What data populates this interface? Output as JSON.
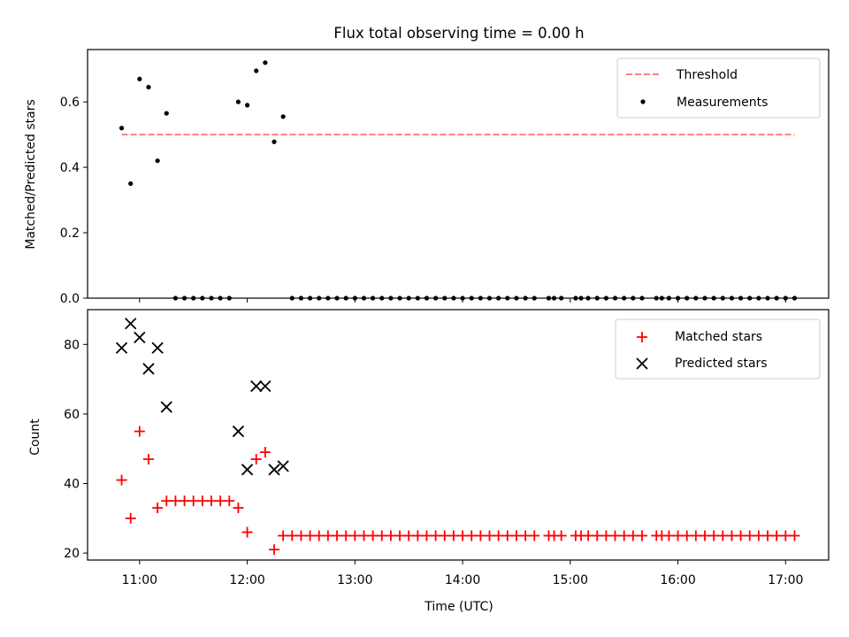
{
  "figure": {
    "title": "Flux total observing time = 0.00 h"
  },
  "chart_data": [
    {
      "type": "scatter",
      "panel": "top",
      "title": "Flux total observing time = 0.00 h",
      "xlabel": "",
      "ylabel": "Matched/Predicted stars",
      "xlim": [
        "10:31",
        "17:24"
      ],
      "ylim": [
        0,
        0.76
      ],
      "yticks": [
        "0.0",
        "0.2",
        "0.4",
        "0.6"
      ],
      "ytick_values": [
        0,
        0.2,
        0.4,
        0.6
      ],
      "xticks_labeled": false,
      "legend_position": "top-right",
      "threshold": {
        "name": "Threshold",
        "value": 0.5,
        "x_range": [
          "10:50",
          "17:05"
        ],
        "color": "#ff7f7f",
        "style": "dashed"
      },
      "series": [
        {
          "name": "Measurements",
          "color": "#000000",
          "marker": "dot",
          "points": [
            [
              "10:50",
              0.52
            ],
            [
              "10:55",
              0.35
            ],
            [
              "11:00",
              0.67
            ],
            [
              "11:05",
              0.645
            ],
            [
              "11:10",
              0.42
            ],
            [
              "11:15",
              0.565
            ],
            [
              "11:20",
              0.0
            ],
            [
              "11:25",
              0.0
            ],
            [
              "11:30",
              0.0
            ],
            [
              "11:35",
              0.0
            ],
            [
              "11:40",
              0.0
            ],
            [
              "11:45",
              0.0
            ],
            [
              "11:50",
              0.0
            ],
            [
              "11:55",
              0.6
            ],
            [
              "12:00",
              0.59
            ],
            [
              "12:05",
              0.695
            ],
            [
              "12:10",
              0.72
            ],
            [
              "12:15",
              0.478
            ],
            [
              "12:20",
              0.555
            ],
            [
              "12:25",
              0.0
            ],
            [
              "12:30",
              0.0
            ],
            [
              "12:35",
              0.0
            ],
            [
              "12:40",
              0.0
            ],
            [
              "12:45",
              0.0
            ],
            [
              "12:50",
              0.0
            ],
            [
              "12:55",
              0.0
            ],
            [
              "13:00",
              0.0
            ],
            [
              "13:05",
              0.0
            ],
            [
              "13:10",
              0.0
            ],
            [
              "13:15",
              0.0
            ],
            [
              "13:20",
              0.0
            ],
            [
              "13:25",
              0.0
            ],
            [
              "13:30",
              0.0
            ],
            [
              "13:35",
              0.0
            ],
            [
              "13:40",
              0.0
            ],
            [
              "13:45",
              0.0
            ],
            [
              "13:50",
              0.0
            ],
            [
              "13:55",
              0.0
            ],
            [
              "14:00",
              0.0
            ],
            [
              "14:05",
              0.0
            ],
            [
              "14:10",
              0.0
            ],
            [
              "14:15",
              0.0
            ],
            [
              "14:20",
              0.0
            ],
            [
              "14:25",
              0.0
            ],
            [
              "14:30",
              0.0
            ],
            [
              "14:35",
              0.0
            ],
            [
              "14:40",
              0.0
            ],
            [
              "14:48",
              0.0
            ],
            [
              "14:51",
              0.0
            ],
            [
              "14:55",
              0.0
            ],
            [
              "15:03",
              0.0
            ],
            [
              "15:06",
              0.0
            ],
            [
              "15:10",
              0.0
            ],
            [
              "15:15",
              0.0
            ],
            [
              "15:20",
              0.0
            ],
            [
              "15:25",
              0.0
            ],
            [
              "15:30",
              0.0
            ],
            [
              "15:35",
              0.0
            ],
            [
              "15:40",
              0.0
            ],
            [
              "15:48",
              0.0
            ],
            [
              "15:51",
              0.0
            ],
            [
              "15:55",
              0.0
            ],
            [
              "16:00",
              0.0
            ],
            [
              "16:05",
              0.0
            ],
            [
              "16:10",
              0.0
            ],
            [
              "16:15",
              0.0
            ],
            [
              "16:20",
              0.0
            ],
            [
              "16:25",
              0.0
            ],
            [
              "16:30",
              0.0
            ],
            [
              "16:35",
              0.0
            ],
            [
              "16:40",
              0.0
            ],
            [
              "16:45",
              0.0
            ],
            [
              "16:50",
              0.0
            ],
            [
              "16:55",
              0.0
            ],
            [
              "17:00",
              0.0
            ],
            [
              "17:05",
              0.0
            ]
          ]
        }
      ]
    },
    {
      "type": "scatter",
      "panel": "bottom",
      "title": "",
      "xlabel": "Time (UTC)",
      "ylabel": "Count",
      "xlim": [
        "10:31",
        "17:24"
      ],
      "ylim": [
        18,
        90
      ],
      "xticks": [
        "11:00",
        "12:00",
        "13:00",
        "14:00",
        "15:00",
        "16:00",
        "17:00"
      ],
      "yticks": [
        "20",
        "40",
        "60",
        "80"
      ],
      "ytick_values": [
        20,
        40,
        60,
        80
      ],
      "legend_position": "top-right",
      "series": [
        {
          "name": "Matched stars",
          "color": "#ff0000",
          "marker": "plus",
          "points": [
            [
              "10:50",
              41
            ],
            [
              "10:55",
              30
            ],
            [
              "11:00",
              55
            ],
            [
              "11:05",
              47
            ],
            [
              "11:10",
              33
            ],
            [
              "11:15",
              35
            ],
            [
              "11:20",
              35
            ],
            [
              "11:25",
              35
            ],
            [
              "11:30",
              35
            ],
            [
              "11:35",
              35
            ],
            [
              "11:40",
              35
            ],
            [
              "11:45",
              35
            ],
            [
              "11:50",
              35
            ],
            [
              "11:55",
              33
            ],
            [
              "12:00",
              26
            ],
            [
              "12:05",
              47
            ],
            [
              "12:10",
              49
            ],
            [
              "12:15",
              21
            ],
            [
              "12:20",
              25
            ],
            [
              "12:25",
              25
            ],
            [
              "12:30",
              25
            ],
            [
              "12:35",
              25
            ],
            [
              "12:40",
              25
            ],
            [
              "12:45",
              25
            ],
            [
              "12:50",
              25
            ],
            [
              "12:55",
              25
            ],
            [
              "13:00",
              25
            ],
            [
              "13:05",
              25
            ],
            [
              "13:10",
              25
            ],
            [
              "13:15",
              25
            ],
            [
              "13:20",
              25
            ],
            [
              "13:25",
              25
            ],
            [
              "13:30",
              25
            ],
            [
              "13:35",
              25
            ],
            [
              "13:40",
              25
            ],
            [
              "13:45",
              25
            ],
            [
              "13:50",
              25
            ],
            [
              "13:55",
              25
            ],
            [
              "14:00",
              25
            ],
            [
              "14:05",
              25
            ],
            [
              "14:10",
              25
            ],
            [
              "14:15",
              25
            ],
            [
              "14:20",
              25
            ],
            [
              "14:25",
              25
            ],
            [
              "14:30",
              25
            ],
            [
              "14:35",
              25
            ],
            [
              "14:40",
              25
            ],
            [
              "14:48",
              25
            ],
            [
              "14:51",
              25
            ],
            [
              "14:55",
              25
            ],
            [
              "15:03",
              25
            ],
            [
              "15:06",
              25
            ],
            [
              "15:10",
              25
            ],
            [
              "15:15",
              25
            ],
            [
              "15:20",
              25
            ],
            [
              "15:25",
              25
            ],
            [
              "15:30",
              25
            ],
            [
              "15:35",
              25
            ],
            [
              "15:40",
              25
            ],
            [
              "15:48",
              25
            ],
            [
              "15:51",
              25
            ],
            [
              "15:55",
              25
            ],
            [
              "16:00",
              25
            ],
            [
              "16:05",
              25
            ],
            [
              "16:10",
              25
            ],
            [
              "16:15",
              25
            ],
            [
              "16:20",
              25
            ],
            [
              "16:25",
              25
            ],
            [
              "16:30",
              25
            ],
            [
              "16:35",
              25
            ],
            [
              "16:40",
              25
            ],
            [
              "16:45",
              25
            ],
            [
              "16:50",
              25
            ],
            [
              "16:55",
              25
            ],
            [
              "17:00",
              25
            ],
            [
              "17:05",
              25
            ]
          ]
        },
        {
          "name": "Predicted stars",
          "color": "#000000",
          "marker": "x",
          "points": [
            [
              "10:50",
              79
            ],
            [
              "10:55",
              86
            ],
            [
              "11:00",
              82
            ],
            [
              "11:05",
              73
            ],
            [
              "11:10",
              79
            ],
            [
              "11:15",
              62
            ],
            [
              "11:55",
              55
            ],
            [
              "12:00",
              44
            ],
            [
              "12:05",
              68
            ],
            [
              "12:10",
              68
            ],
            [
              "12:15",
              44
            ],
            [
              "12:20",
              45
            ]
          ]
        }
      ]
    }
  ]
}
